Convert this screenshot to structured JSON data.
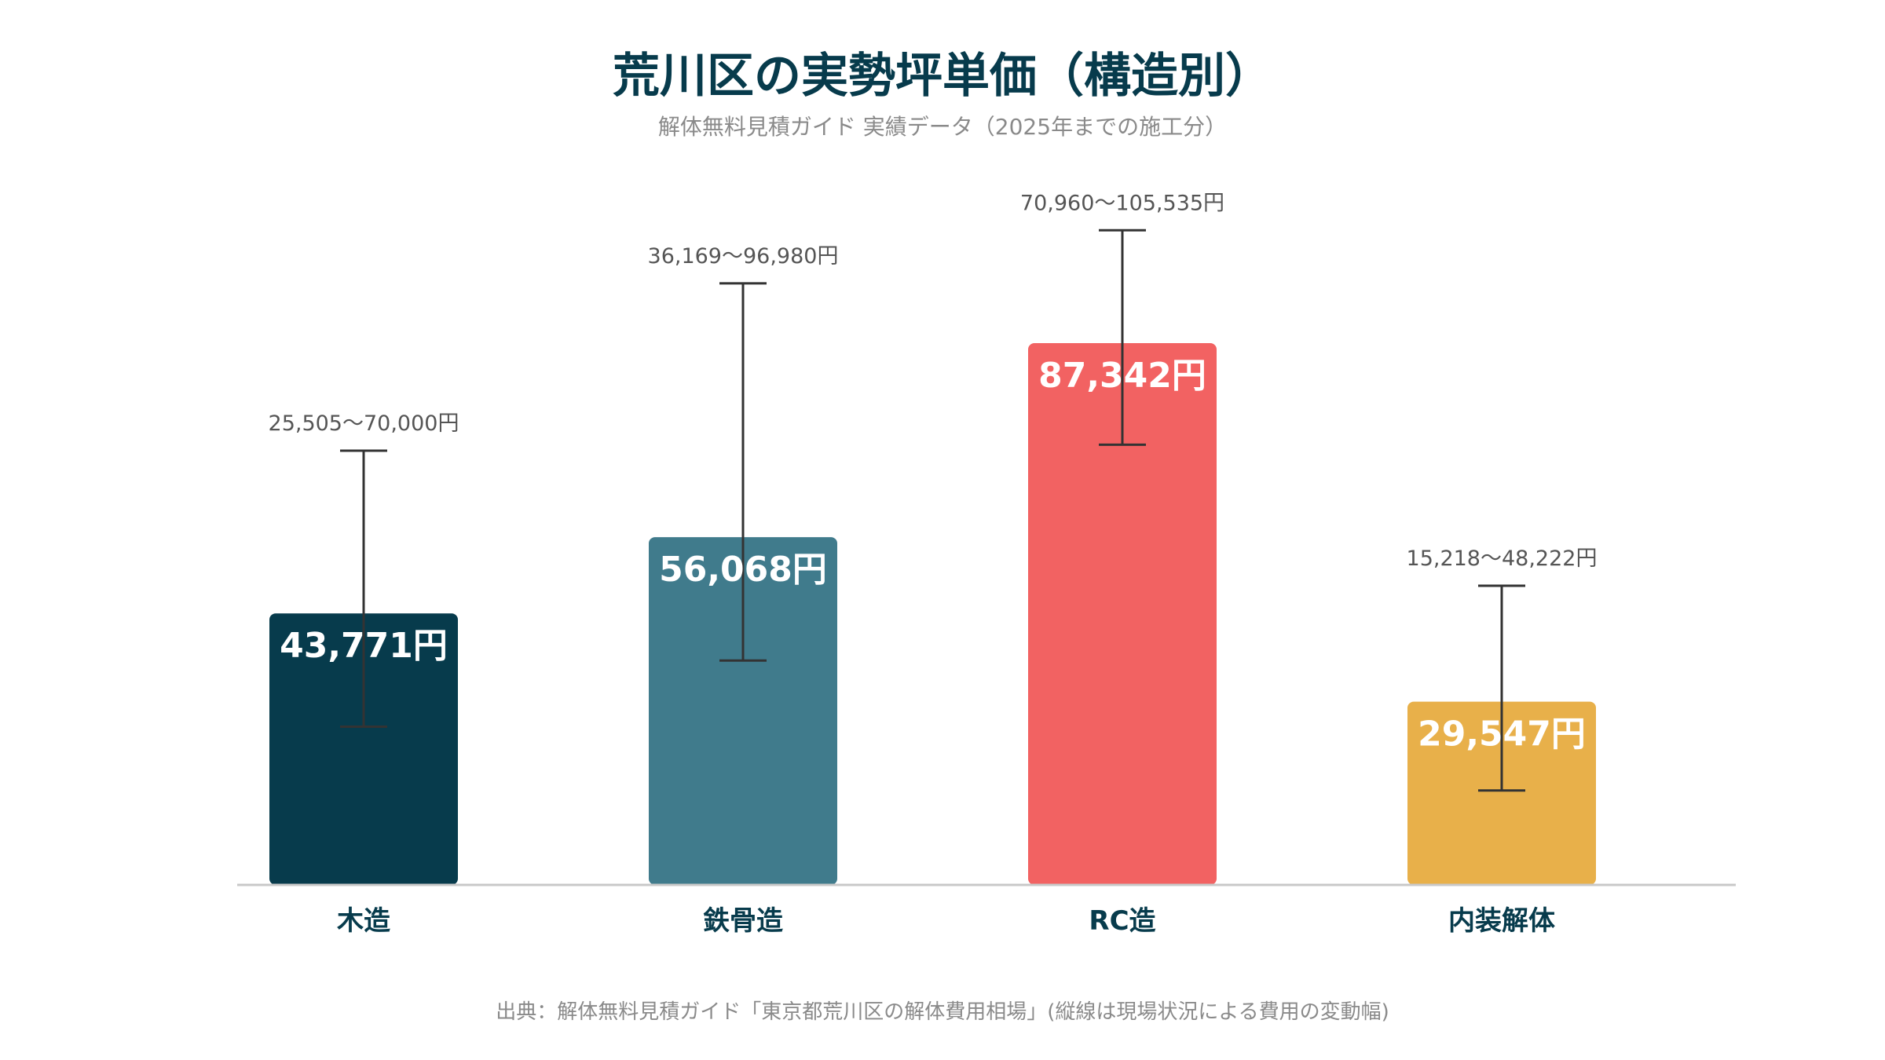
{
  "title": "荒川区の実勢坪単価（構造別）",
  "subtitle": "解体無料見積ガイド 実績データ（2025年までの施工分）",
  "footer": "出典：解体無料見積ガイド「東京都荒川区の解体費用相場」(縦線は現場状況による費用の変動幅)",
  "chart_data": {
    "type": "bar",
    "title": "荒川区の実勢坪単価（構造別）",
    "categories": [
      "木造",
      "鉄骨造",
      "RC造",
      "内装解体"
    ],
    "values": [
      43771,
      56068,
      87342,
      29547
    ],
    "value_labels": [
      "43,771円",
      "56,068円",
      "87,342円",
      "29,547円"
    ],
    "error_low": [
      25505,
      36169,
      70960,
      15218
    ],
    "error_high": [
      70000,
      96980,
      105535,
      48222
    ],
    "range_labels": [
      "25,505〜70,000円",
      "36,169〜96,980円",
      "70,960〜105,535円",
      "15,218〜48,222円"
    ],
    "colors": [
      "#073b4c",
      "#407b8c",
      "#f26262",
      "#e8b04a"
    ],
    "ylim": [
      0,
      120000
    ],
    "grid": false,
    "legend": "none"
  }
}
